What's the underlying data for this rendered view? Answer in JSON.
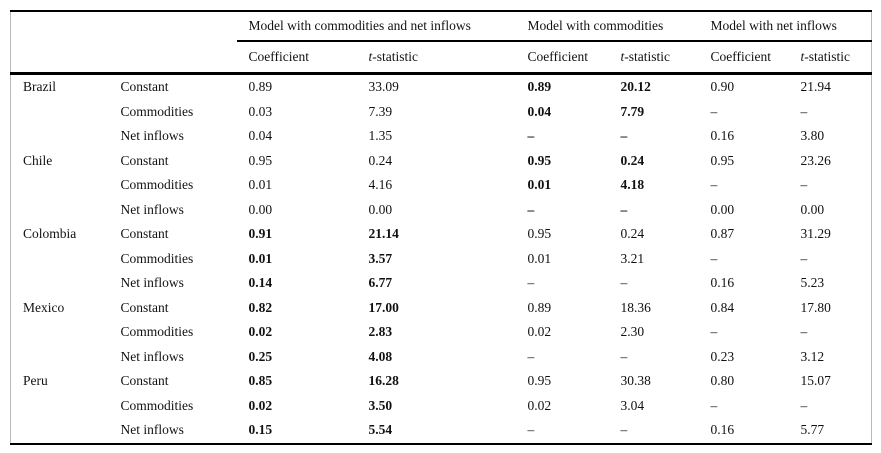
{
  "colors": {
    "rule": "#000000",
    "edge_line": "#b9b9b9",
    "background": "#ffffff",
    "text": "#111111"
  },
  "table": {
    "groups": [
      {
        "label": "Model with commodities and net inflows"
      },
      {
        "label": "Model with commodities"
      },
      {
        "label": "Model with net inflows"
      }
    ],
    "subheaders": {
      "coefficient": "Coefficient",
      "tstat_italic": "t",
      "tstat_rest": "-statistic"
    },
    "rows": [
      {
        "country": "Brazil",
        "variable": "Constant",
        "m1": [
          "0.89",
          "33.09"
        ],
        "m2": [
          "0.89",
          "20.12"
        ],
        "m3": [
          "0.90",
          "21.94"
        ],
        "bold": "m2"
      },
      {
        "country": "",
        "variable": "Commodities",
        "m1": [
          "0.03",
          "7.39"
        ],
        "m2": [
          "0.04",
          "7.79"
        ],
        "m3": [
          "–",
          "–"
        ],
        "bold": "m2"
      },
      {
        "country": "",
        "variable": "Net inflows",
        "m1": [
          "0.04",
          "1.35"
        ],
        "m2": [
          "–",
          "–"
        ],
        "m3": [
          "0.16",
          "3.80"
        ],
        "bold": "m2"
      },
      {
        "country": "Chile",
        "variable": "Constant",
        "m1": [
          "0.95",
          "0.24"
        ],
        "m2": [
          "0.95",
          "0.24"
        ],
        "m3": [
          "0.95",
          "23.26"
        ],
        "bold": "m2"
      },
      {
        "country": "",
        "variable": "Commodities",
        "m1": [
          "0.01",
          "4.16"
        ],
        "m2": [
          "0.01",
          "4.18"
        ],
        "m3": [
          "–",
          "–"
        ],
        "bold": "m2"
      },
      {
        "country": "",
        "variable": "Net inflows",
        "m1": [
          "0.00",
          "0.00"
        ],
        "m2": [
          "–",
          "–"
        ],
        "m3": [
          "0.00",
          "0.00"
        ],
        "bold": "m2"
      },
      {
        "country": "Colombia",
        "variable": "Constant",
        "m1": [
          "0.91",
          "21.14"
        ],
        "m2": [
          "0.95",
          "0.24"
        ],
        "m3": [
          "0.87",
          "31.29"
        ],
        "bold": "m1"
      },
      {
        "country": "",
        "variable": "Commodities",
        "m1": [
          "0.01",
          "3.57"
        ],
        "m2": [
          "0.01",
          "3.21"
        ],
        "m3": [
          "–",
          "–"
        ],
        "bold": "m1"
      },
      {
        "country": "",
        "variable": "Net inflows",
        "m1": [
          "0.14",
          "6.77"
        ],
        "m2": [
          "–",
          "–"
        ],
        "m3": [
          "0.16",
          "5.23"
        ],
        "bold": "m1"
      },
      {
        "country": "Mexico",
        "variable": "Constant",
        "m1": [
          "0.82",
          "17.00"
        ],
        "m2": [
          "0.89",
          "18.36"
        ],
        "m3": [
          "0.84",
          "17.80"
        ],
        "bold": "m1"
      },
      {
        "country": "",
        "variable": "Commodities",
        "m1": [
          "0.02",
          "2.83"
        ],
        "m2": [
          "0.02",
          "2.30"
        ],
        "m3": [
          "–",
          "–"
        ],
        "bold": "m1"
      },
      {
        "country": "",
        "variable": "Net inflows",
        "m1": [
          "0.25",
          "4.08"
        ],
        "m2": [
          "–",
          "–"
        ],
        "m3": [
          "0.23",
          "3.12"
        ],
        "bold": "m1"
      },
      {
        "country": "Peru",
        "variable": "Constant",
        "m1": [
          "0.85",
          "16.28"
        ],
        "m2": [
          "0.95",
          "30.38"
        ],
        "m3": [
          "0.80",
          "15.07"
        ],
        "bold": "m1"
      },
      {
        "country": "",
        "variable": "Commodities",
        "m1": [
          "0.02",
          "3.50"
        ],
        "m2": [
          "0.02",
          "3.04"
        ],
        "m3": [
          "–",
          "–"
        ],
        "bold": "m1"
      },
      {
        "country": "",
        "variable": "Net inflows",
        "m1": [
          "0.15",
          "5.54"
        ],
        "m2": [
          "–",
          "–"
        ],
        "m3": [
          "0.16",
          "5.77"
        ],
        "bold": "m1"
      }
    ]
  }
}
